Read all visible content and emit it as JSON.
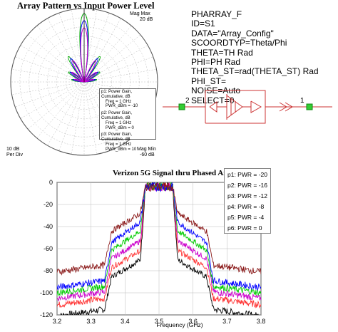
{
  "polar": {
    "title": "Array Pattern vs Input Power Level",
    "mag_max_label": "Mag Max",
    "mag_max_value": "20 dB",
    "mag_min_label": "Mag Min",
    "mag_min_value": "-60 dB",
    "scale_value": "10 dB",
    "scale_unit": "Per Div",
    "legend": [
      {
        "id": "p1",
        "name": "p1: Power Gain, Cumulative, dB",
        "freq": "Freq = 1 GHz",
        "pwr": "PWR_dBm = -10",
        "color": "#cc00cc"
      },
      {
        "id": "p2",
        "name": "p2: Power Gain, Cumulative, dB",
        "freq": "Freq = 1 GHz",
        "pwr": "PWR_dBm = 0",
        "color": "#0000ff"
      },
      {
        "id": "p3",
        "name": "p3: Power Gain, Cumulative, dB",
        "freq": "Freq = 1 GHz",
        "pwr": "PWR_dBm = 10",
        "color": "#00aa00"
      }
    ]
  },
  "properties": [
    "PHARRAY_F",
    "ID=S1",
    "DATA=\"Array_Config\"",
    "SCOORDTYP=Theta/Phi",
    "THETA=TH Rad",
    "PHI=PH Rad",
    "THETA_ST=rad(THETA_ST) Rad",
    "PHI_ST=",
    "NOISE=Auto",
    "SELECT=0"
  ],
  "schematic": {
    "port_left": "2",
    "port_right": "1",
    "line_color": "#cc3333",
    "node_color": "#33cc33"
  },
  "chart_data": {
    "type": "line",
    "title": "Verizon 5G Signal thru Phased Array",
    "xlabel": "Frequency (GHz)",
    "ylabel": "",
    "xlim": [
      3.2,
      3.8
    ],
    "ylim": [
      -120,
      0
    ],
    "x_ticks": [
      "3.2",
      "3.3",
      "3.4",
      "3.5",
      "3.6",
      "3.7",
      "3.8"
    ],
    "y_ticks": [
      "0",
      "-20",
      "-40",
      "-60",
      "-80",
      "-100",
      "-120"
    ],
    "grid": true,
    "legend_position": "top-right",
    "series": [
      {
        "name": "p1: PWR = -20",
        "color": "#000000",
        "level": -4,
        "skirt": -70,
        "floor": -115
      },
      {
        "name": "p2: PWR = -16",
        "color": "#ff3333",
        "level": -4,
        "skirt": -62,
        "floor": -105
      },
      {
        "name": "p3: PWR = -12",
        "color": "#cc00cc",
        "level": -4,
        "skirt": -53,
        "floor": -99
      },
      {
        "name": "p4: PWR = -8",
        "color": "#00cc00",
        "level": -4,
        "skirt": -44,
        "floor": -94
      },
      {
        "name": "p5: PWR = -4",
        "color": "#0000ff",
        "level": -4,
        "skirt": -36,
        "floor": -89
      },
      {
        "name": "p6: PWR = 0",
        "color": "#8b1a1a",
        "level": -4,
        "skirt": -28,
        "floor": -75
      }
    ]
  }
}
